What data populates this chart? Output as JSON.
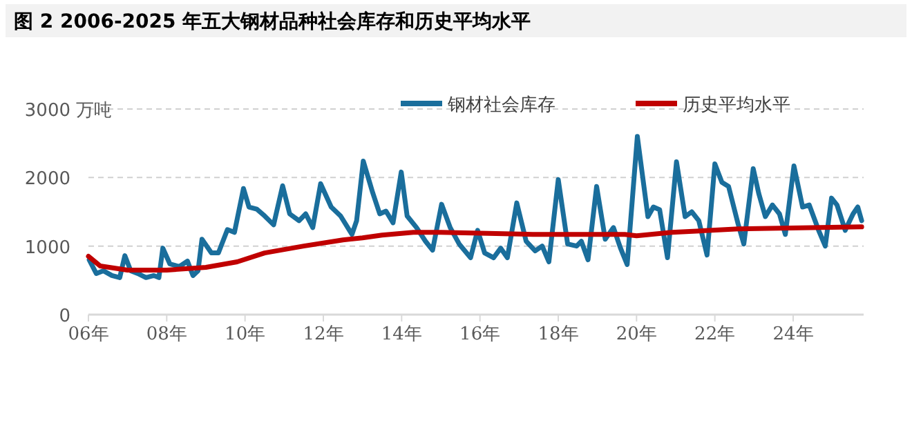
{
  "chart_data": {
    "type": "line",
    "title": "图 2 2006-2025 年五大钢材品种社会库存和历史平均水平",
    "ylabel": "万吨",
    "xlim": [
      6,
      25.8
    ],
    "xticks": [
      {
        "value": 6,
        "label": "06年"
      },
      {
        "value": 8,
        "label": "08年"
      },
      {
        "value": 10,
        "label": "10年"
      },
      {
        "value": 12,
        "label": "12年"
      },
      {
        "value": 14,
        "label": "14年"
      },
      {
        "value": 16,
        "label": "16年"
      },
      {
        "value": 18,
        "label": "18年"
      },
      {
        "value": 20,
        "label": "20年"
      },
      {
        "value": 22,
        "label": "22年"
      },
      {
        "value": 24,
        "label": "24年"
      }
    ],
    "ylim": [
      0,
      3000
    ],
    "yticks": [
      0,
      1000,
      2000,
      3000
    ],
    "grid": "y",
    "legend": "top",
    "line_style": "solid",
    "marker": "none",
    "series": [
      {
        "name": "钢材社会库存",
        "color": "#1a6e9c",
        "x": [
          6.02,
          6.2,
          6.38,
          6.6,
          6.8,
          6.93,
          7.08,
          7.26,
          7.47,
          7.67,
          7.8,
          7.9,
          8.08,
          8.32,
          8.53,
          8.67,
          8.8,
          8.9,
          9.14,
          9.32,
          9.55,
          9.73,
          9.96,
          10.1,
          10.3,
          10.5,
          10.73,
          10.96,
          11.14,
          11.38,
          11.55,
          11.73,
          11.93,
          12.2,
          12.44,
          12.73,
          12.85,
          13.02,
          13.26,
          13.44,
          13.6,
          13.78,
          13.99,
          14.14,
          14.38,
          14.61,
          14.79,
          15.02,
          15.24,
          15.47,
          15.76,
          15.94,
          16.12,
          16.35,
          16.53,
          16.7,
          16.94,
          17.18,
          17.41,
          17.59,
          17.76,
          18.0,
          18.24,
          18.47,
          18.59,
          18.76,
          18.98,
          19.2,
          19.41,
          19.59,
          19.76,
          20.02,
          20.29,
          20.43,
          20.59,
          20.79,
          21.02,
          21.24,
          21.41,
          21.59,
          21.8,
          22.0,
          22.18,
          22.35,
          22.59,
          22.74,
          22.98,
          23.12,
          23.29,
          23.47,
          23.65,
          23.8,
          24.02,
          24.24,
          24.41,
          24.65,
          24.82,
          24.98,
          25.12,
          25.33,
          25.53,
          25.65,
          25.75
        ],
        "values": [
          800,
          600,
          640,
          570,
          540,
          860,
          640,
          600,
          540,
          570,
          540,
          970,
          740,
          700,
          780,
          570,
          640,
          1100,
          900,
          900,
          1240,
          1200,
          1840,
          1570,
          1540,
          1440,
          1310,
          1880,
          1470,
          1370,
          1470,
          1270,
          1910,
          1570,
          1440,
          1170,
          1370,
          2240,
          1780,
          1470,
          1510,
          1340,
          2080,
          1440,
          1270,
          1070,
          940,
          1610,
          1270,
          1030,
          830,
          1230,
          900,
          830,
          970,
          830,
          1630,
          1070,
          930,
          1000,
          770,
          1970,
          1030,
          1000,
          1070,
          800,
          1870,
          1100,
          1270,
          970,
          730,
          2600,
          1430,
          1570,
          1530,
          830,
          2230,
          1430,
          1500,
          1370,
          870,
          2200,
          1930,
          1870,
          1330,
          1030,
          2130,
          1770,
          1430,
          1600,
          1470,
          1170,
          2170,
          1570,
          1600,
          1230,
          1000,
          1700,
          1600,
          1230,
          1470,
          1570,
          1370
        ]
      },
      {
        "name": "历史平均水平",
        "color": "#c00000",
        "x": [
          6,
          6.3,
          7,
          8,
          9,
          9.8,
          10.5,
          11.5,
          12.5,
          13,
          13.5,
          14.3,
          15,
          17.35,
          19.7,
          20,
          20.9,
          22.6,
          25.75
        ],
        "values": [
          850,
          710,
          650,
          650,
          690,
          770,
          900,
          1000,
          1090,
          1120,
          1160,
          1200,
          1200,
          1170,
          1170,
          1150,
          1200,
          1250,
          1280
        ]
      }
    ]
  }
}
